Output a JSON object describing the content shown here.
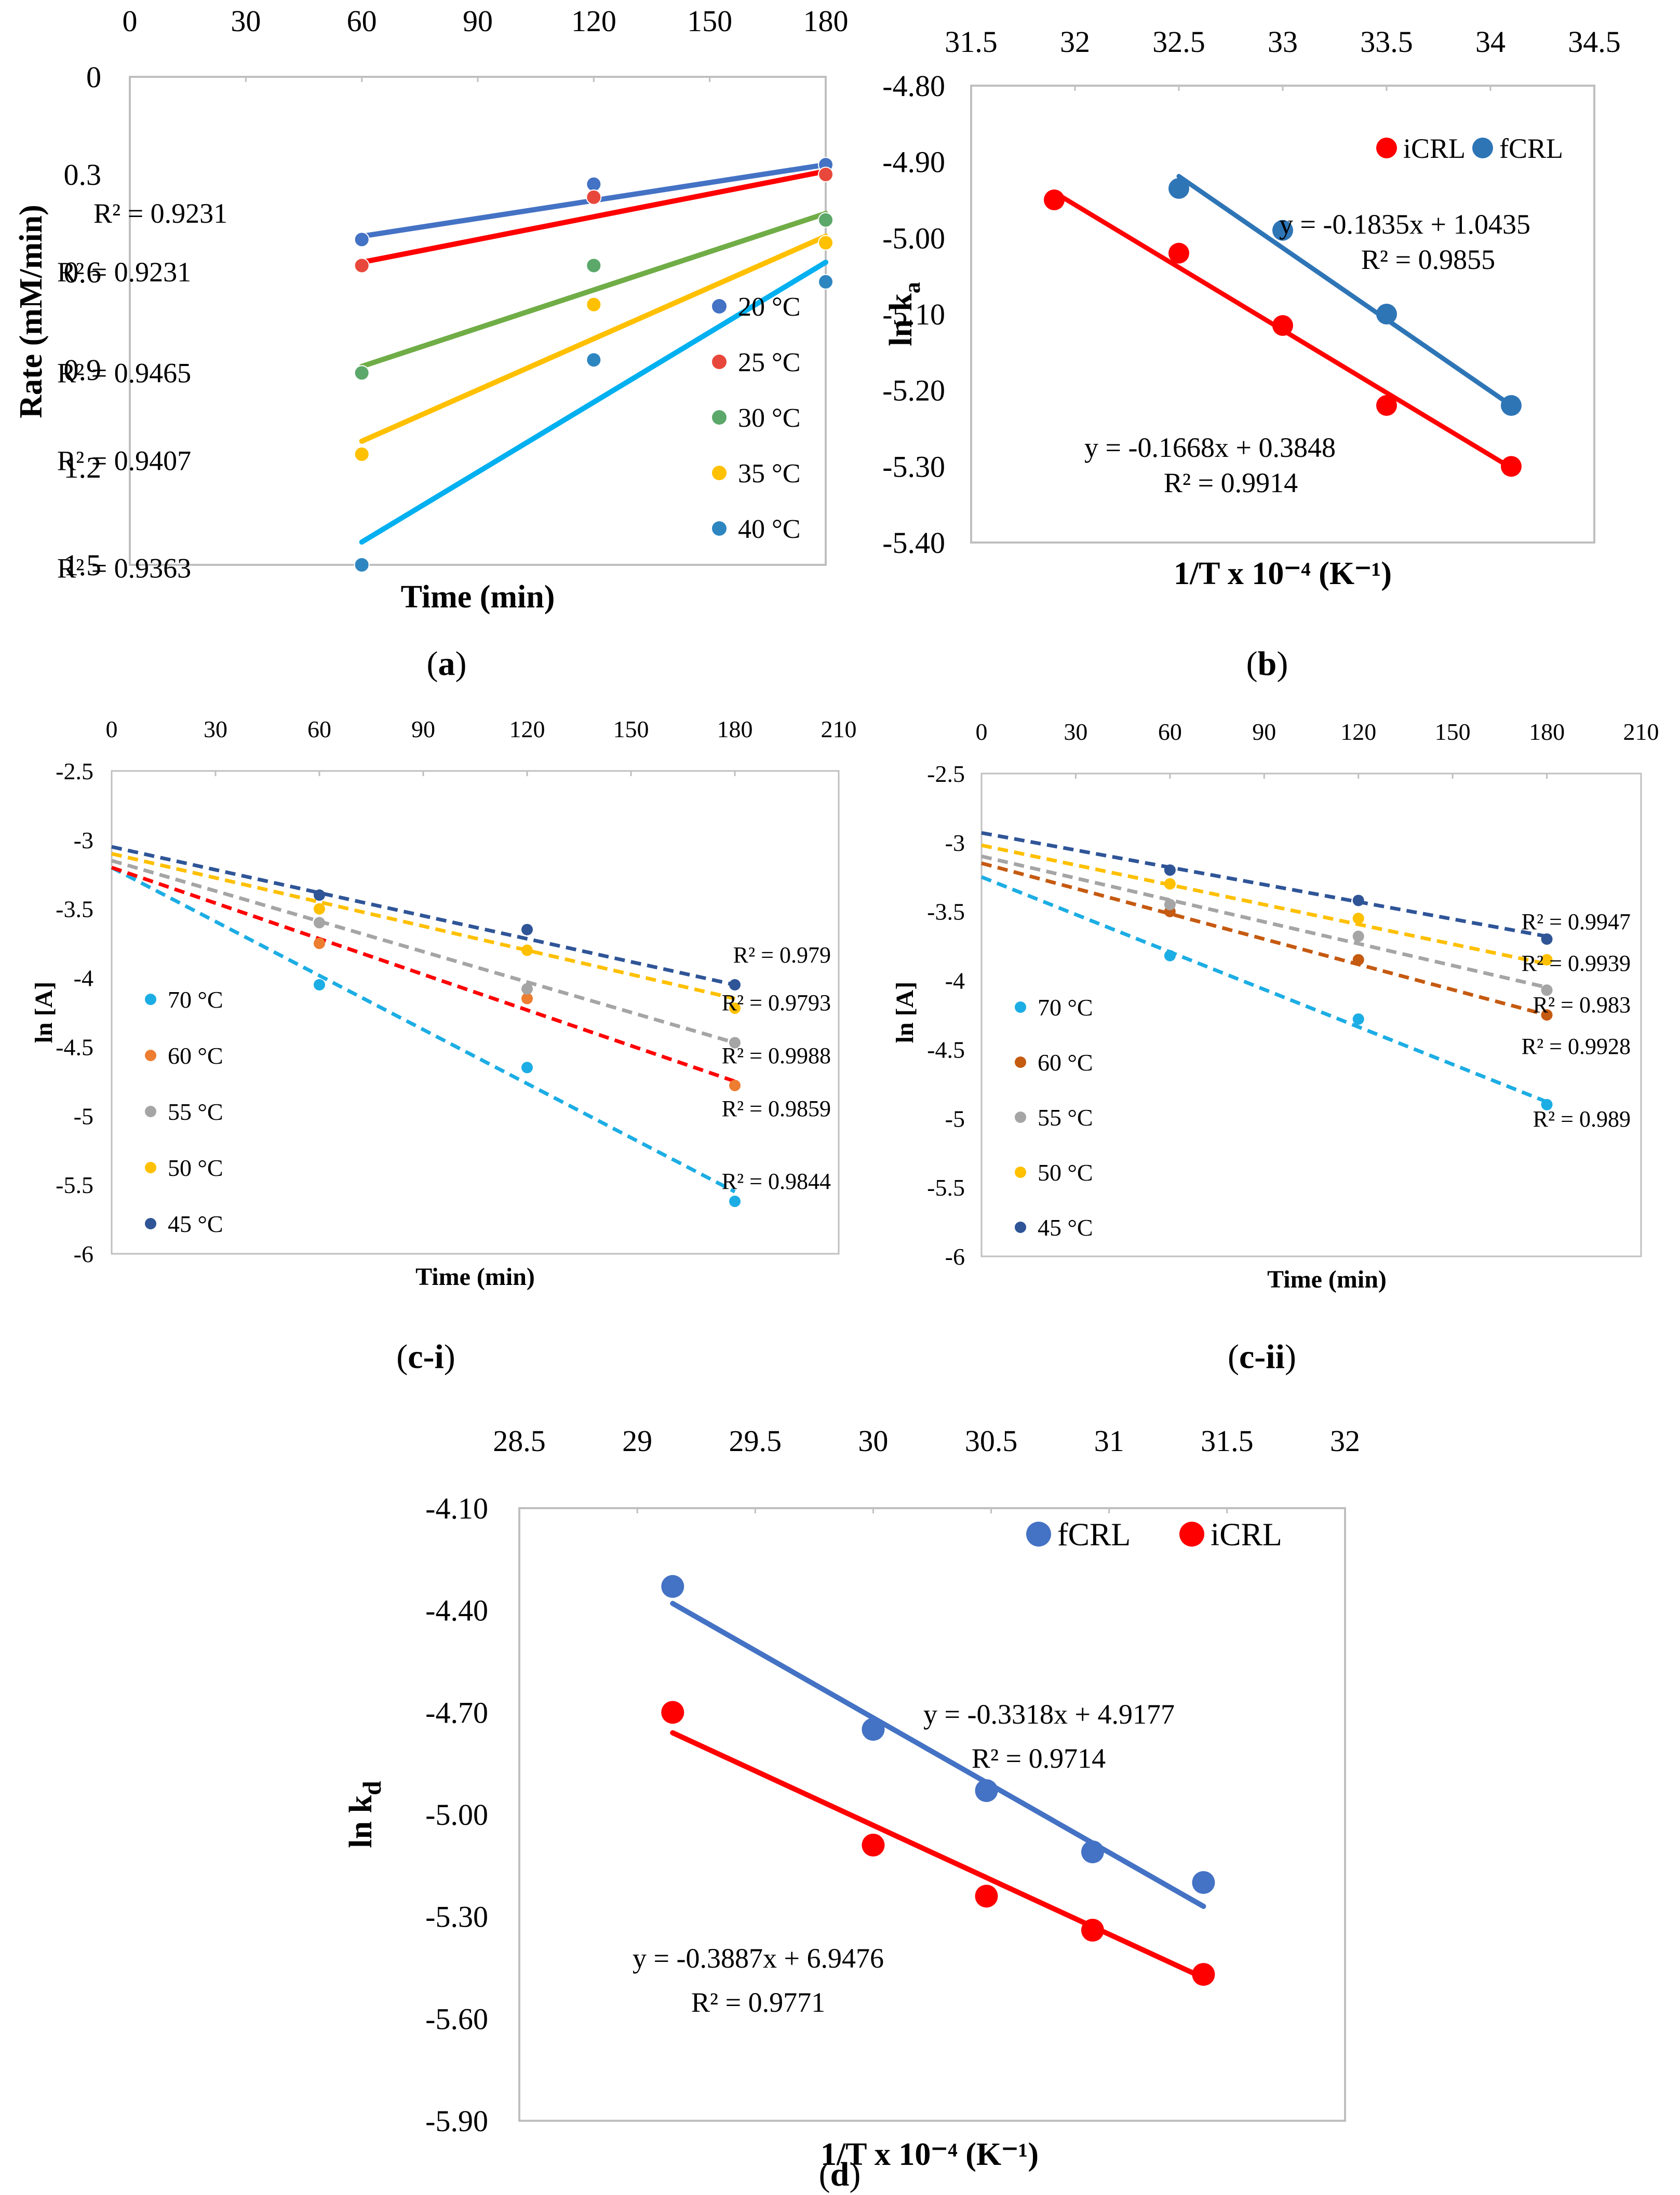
{
  "panel_labels": {
    "a": {
      "open": "(",
      "letter": "a",
      "close": ")"
    },
    "b": {
      "open": "(",
      "letter": "b",
      "close": ")"
    },
    "ci": {
      "open": "(",
      "letter": "c-i",
      "close": ")"
    },
    "cii": {
      "open": "(",
      "letter": "c-ii",
      "close": ")"
    },
    "d": {
      "open": "(",
      "letter": "d",
      "close": ")"
    }
  },
  "chart_data": [
    {
      "id": "a",
      "type": "scatter",
      "title": "",
      "xlabel": "Time (min)",
      "ylabel": "Rate (mM/min)",
      "xlim": [
        0,
        180
      ],
      "ylim": [
        0,
        1.5
      ],
      "y_inverted": true,
      "x_axis_position": "top",
      "xticks": [
        0,
        30,
        60,
        90,
        120,
        150,
        180
      ],
      "yticks": [
        0,
        0.3,
        0.6,
        0.9,
        1.2,
        1.5
      ],
      "ytick_labels": [
        "0",
        "0.3",
        "0.6",
        "0.9",
        "1.2",
        "1.5"
      ],
      "series": [
        {
          "name": "20 °C",
          "color": "#4472C4",
          "trend_color": "#4472C4",
          "x": [
            60,
            120,
            180
          ],
          "y": [
            0.5,
            0.33,
            0.27
          ],
          "trend": [
            [
              60,
              0.49
            ],
            [
              180,
              0.27
            ]
          ],
          "r2": "R² = 0.9231"
        },
        {
          "name": "25 °C",
          "color": "#E8483B",
          "trend_color": "#FF0000",
          "x": [
            60,
            120,
            180
          ],
          "y": [
            0.58,
            0.37,
            0.3
          ],
          "trend": [
            [
              60,
              0.57
            ],
            [
              180,
              0.29
            ]
          ],
          "r2": "R² = 0.9231"
        },
        {
          "name": "30 °C",
          "color": "#5BA86A",
          "trend_color": "#70AD47",
          "x": [
            60,
            120,
            180
          ],
          "y": [
            0.91,
            0.58,
            0.44
          ],
          "trend": [
            [
              60,
              0.89
            ],
            [
              180,
              0.42
            ]
          ],
          "r2": "R² = 0.9465"
        },
        {
          "name": "35 °C",
          "color": "#FFC000",
          "trend_color": "#FFC000",
          "x": [
            60,
            120,
            180
          ],
          "y": [
            1.16,
            0.7,
            0.51
          ],
          "trend": [
            [
              60,
              1.12
            ],
            [
              180,
              0.49
            ]
          ],
          "r2": "R² = 0.9407"
        },
        {
          "name": "40 °C",
          "color": "#2E86C1",
          "trend_color": "#00B0F0",
          "x": [
            60,
            120,
            180
          ],
          "y": [
            1.5,
            0.87,
            0.63
          ],
          "trend": [
            [
              60,
              1.43
            ],
            [
              180,
              0.57
            ]
          ],
          "r2": "R² = 0.9363"
        }
      ]
    },
    {
      "id": "b",
      "type": "scatter",
      "title": "",
      "xlabel": "1/T x 10⁻⁴ (K⁻¹)",
      "ylabel_main": "ln k",
      "ylabel_sub": "a",
      "xlim": [
        31.5,
        34.5
      ],
      "ylim": [
        -5.4,
        -4.8
      ],
      "x_axis_position": "top",
      "xticks": [
        31.5,
        32,
        32.5,
        33,
        33.5,
        34,
        34.5
      ],
      "xtick_labels": [
        "31.5",
        "32",
        "32.5",
        "33",
        "33.5",
        "34",
        "34.5"
      ],
      "yticks": [
        -4.8,
        -4.9,
        -5.0,
        -5.1,
        -5.2,
        -5.3,
        -5.4
      ],
      "ytick_labels": [
        "-4.80",
        "-4.90",
        "-5.00",
        "-5.10",
        "-5.20",
        "-5.30",
        "-5.40"
      ],
      "series": [
        {
          "name": "iCRL",
          "color": "#FF0000",
          "x": [
            31.9,
            32.5,
            33.0,
            33.5,
            34.1
          ],
          "y": [
            -4.95,
            -5.02,
            -5.115,
            -5.22,
            -5.3
          ],
          "trend": [
            [
              31.9,
              -4.94
            ],
            [
              34.1,
              -5.302
            ]
          ]
        },
        {
          "name": "fCRL",
          "color": "#2E75B6",
          "x": [
            32.5,
            33.0,
            33.5,
            34.1
          ],
          "y": [
            -4.935,
            -4.99,
            -5.1,
            -5.22
          ],
          "trend": [
            [
              32.5,
              -4.919
            ],
            [
              34.1,
              -5.22
            ]
          ]
        }
      ],
      "annotations": {
        "fcrl_eq": "y = -0.1835x + 1.0435",
        "fcrl_r2": "R² = 0.9855",
        "icrl_eq": "y = -0.1668x + 0.3848",
        "icrl_r2": "R² = 0.9914"
      }
    },
    {
      "id": "c-i",
      "type": "scatter",
      "title": "",
      "xlabel": "Time (min)",
      "ylabel": "ln [A]",
      "xlim": [
        0,
        210
      ],
      "ylim": [
        -6,
        -2.5
      ],
      "x_axis_position": "top",
      "xticks": [
        0,
        30,
        60,
        90,
        120,
        150,
        180,
        210
      ],
      "yticks": [
        -2.5,
        -3,
        -3.5,
        -4,
        -4.5,
        -5,
        -5.5,
        -6
      ],
      "ytick_labels": [
        "-2.5",
        "-3",
        "-3.5",
        "-4",
        "-4.5",
        "-5",
        "-5.5",
        "-6"
      ],
      "r2_labels": [
        "R² = 0.979",
        "R² = 0.9793",
        "R² = 0.9988",
        "R² = 0.9859",
        "R² = 0.9844"
      ],
      "series": [
        {
          "name": "70 °C",
          "color": "#1CADE4",
          "x": [
            60,
            120,
            180
          ],
          "y": [
            -4.05,
            -4.65,
            -5.62
          ],
          "trend": [
            [
              0,
              -3.2
            ],
            [
              180,
              -5.55
            ]
          ]
        },
        {
          "name": "60 °C",
          "color": "#ED7D31",
          "trend_color": "#FF0000",
          "x": [
            60,
            120,
            180
          ],
          "y": [
            -3.75,
            -4.15,
            -4.78
          ],
          "trend": [
            [
              0,
              -3.2
            ],
            [
              180,
              -4.75
            ]
          ]
        },
        {
          "name": "55 °C",
          "color": "#A5A5A5",
          "x": [
            60,
            120,
            180
          ],
          "y": [
            -3.6,
            -4.08,
            -4.47
          ],
          "trend": [
            [
              0,
              -3.15
            ],
            [
              180,
              -4.47
            ]
          ]
        },
        {
          "name": "50 °C",
          "color": "#FFC000",
          "x": [
            60,
            120,
            180
          ],
          "y": [
            -3.5,
            -3.8,
            -4.22
          ],
          "trend": [
            [
              0,
              -3.1
            ],
            [
              180,
              -4.15
            ]
          ]
        },
        {
          "name": "45 °C",
          "color": "#2F5597",
          "x": [
            60,
            120,
            180
          ],
          "y": [
            -3.4,
            -3.65,
            -4.05
          ],
          "trend": [
            [
              0,
              -3.05
            ],
            [
              180,
              -4.05
            ]
          ]
        }
      ]
    },
    {
      "id": "c-ii",
      "type": "scatter",
      "title": "",
      "xlabel": "Time (min)",
      "ylabel": "ln [A]",
      "xlim": [
        0,
        210
      ],
      "ylim": [
        -6,
        -2.5
      ],
      "x_axis_position": "top",
      "xticks": [
        0,
        30,
        60,
        90,
        120,
        150,
        180,
        210
      ],
      "yticks": [
        -2.5,
        -3,
        -3.5,
        -4,
        -4.5,
        -5,
        -5.5,
        -6
      ],
      "ytick_labels": [
        "-2.5",
        "-3",
        "-3.5",
        "-4",
        "-4.5",
        "-5",
        "-5.5",
        "-6"
      ],
      "r2_labels": [
        "R² = 0.9947",
        "R² = 0.9939",
        "R² = 0.983",
        "R² = 0.9928",
        "R² = 0.989"
      ],
      "series": [
        {
          "name": "70 °C",
          "color": "#1CADE4",
          "x": [
            60,
            120,
            180
          ],
          "y": [
            -3.82,
            -4.28,
            -4.9
          ],
          "trend": [
            [
              0,
              -3.25
            ],
            [
              180,
              -4.88
            ]
          ]
        },
        {
          "name": "60 °C",
          "color": "#C55A11",
          "x": [
            60,
            120,
            180
          ],
          "y": [
            -3.5,
            -3.85,
            -4.25
          ],
          "trend": [
            [
              0,
              -3.15
            ],
            [
              180,
              -4.25
            ]
          ]
        },
        {
          "name": "55 °C",
          "color": "#A5A5A5",
          "x": [
            60,
            120,
            180
          ],
          "y": [
            -3.45,
            -3.68,
            -4.07
          ],
          "trend": [
            [
              0,
              -3.1
            ],
            [
              180,
              -4.05
            ]
          ]
        },
        {
          "name": "50 °C",
          "color": "#FFC000",
          "x": [
            60,
            120,
            180
          ],
          "y": [
            -3.3,
            -3.55,
            -3.85
          ],
          "trend": [
            [
              0,
              -3.02
            ],
            [
              180,
              -3.88
            ]
          ]
        },
        {
          "name": "45 °C",
          "color": "#2F5597",
          "x": [
            60,
            120,
            180
          ],
          "y": [
            -3.2,
            -3.42,
            -3.7
          ],
          "trend": [
            [
              0,
              -2.93
            ],
            [
              180,
              -3.68
            ]
          ]
        }
      ]
    },
    {
      "id": "d",
      "type": "scatter",
      "title": "",
      "xlabel": "1/T x 10⁻⁴ (K⁻¹)",
      "ylabel_main": "ln k",
      "ylabel_sub": "d",
      "xlim": [
        28.5,
        32
      ],
      "ylim": [
        -5.9,
        -4.1
      ],
      "x_axis_position": "top",
      "xticks": [
        28.5,
        29,
        29.5,
        30,
        30.5,
        31,
        31.5,
        32
      ],
      "xtick_labels": [
        "28.5",
        "29",
        "29.5",
        "30",
        "30.5",
        "31",
        "31.5",
        "32"
      ],
      "yticks": [
        -4.1,
        -4.4,
        -4.7,
        -5.0,
        -5.3,
        -5.6,
        -5.9
      ],
      "ytick_labels": [
        "-4.10",
        "-4.40",
        "-4.70",
        "-5.00",
        "-5.30",
        "-5.60",
        "-5.90"
      ],
      "series": [
        {
          "name": "fCRL",
          "color": "#4472C4",
          "x": [
            29.15,
            30.0,
            30.48,
            30.93,
            31.4
          ],
          "y": [
            -4.33,
            -4.75,
            -4.93,
            -5.11,
            -5.2
          ],
          "trend": [
            [
              29.15,
              -4.38
            ],
            [
              31.4,
              -5.27
            ]
          ]
        },
        {
          "name": "iCRL",
          "color": "#FF0000",
          "x": [
            29.15,
            30.0,
            30.48,
            30.93,
            31.4
          ],
          "y": [
            -4.7,
            -5.09,
            -5.24,
            -5.34,
            -5.47
          ],
          "trend": [
            [
              29.15,
              -4.76
            ],
            [
              31.4,
              -5.48
            ]
          ]
        }
      ],
      "annotations": {
        "fcrl_eq": "y = -0.3318x + 4.9177",
        "fcrl_r2": "R² = 0.9714",
        "icrl_eq": "y = -0.3887x + 6.9476",
        "icrl_r2": "R² = 0.9771"
      }
    }
  ]
}
